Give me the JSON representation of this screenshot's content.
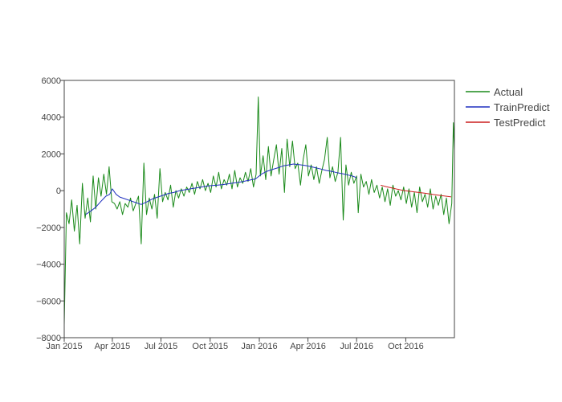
{
  "chart_data": {
    "type": "line",
    "title": "",
    "xlabel": "",
    "ylabel": "",
    "x_range": [
      "2015-01-01",
      "2016-12-31"
    ],
    "ylim": [
      -8000,
      6000
    ],
    "y_ticks": [
      -8000,
      -6000,
      -4000,
      -2000,
      0,
      2000,
      4000,
      6000
    ],
    "y_tick_labels": [
      "−8000",
      "−6000",
      "−4000",
      "−2000",
      "0",
      "2000",
      "4000",
      "6000"
    ],
    "x_ticks": [
      {
        "date": "2015-01-01",
        "label": "Jan 2015"
      },
      {
        "date": "2015-04-01",
        "label": "Apr 2015"
      },
      {
        "date": "2015-07-01",
        "label": "Jul 2015"
      },
      {
        "date": "2015-10-01",
        "label": "Oct 2015"
      },
      {
        "date": "2016-01-01",
        "label": "Jan 2016"
      },
      {
        "date": "2016-04-01",
        "label": "Apr 2016"
      },
      {
        "date": "2016-07-01",
        "label": "Jul 2016"
      },
      {
        "date": "2016-10-01",
        "label": "Oct 2016"
      }
    ],
    "grid": false,
    "legend_position": "right",
    "series": [
      {
        "name": "Actual",
        "color": "#1a8a1a",
        "points": [
          [
            "2015-01-01",
            -7300
          ],
          [
            "2015-01-05",
            -1200
          ],
          [
            "2015-01-10",
            -1800
          ],
          [
            "2015-01-15",
            -500
          ],
          [
            "2015-01-20",
            -2200
          ],
          [
            "2015-01-25",
            -800
          ],
          [
            "2015-01-30",
            -2900
          ],
          [
            "2015-02-04",
            400
          ],
          [
            "2015-02-09",
            -1500
          ],
          [
            "2015-02-14",
            -400
          ],
          [
            "2015-02-19",
            -1700
          ],
          [
            "2015-02-24",
            800
          ],
          [
            "2015-03-01",
            -1000
          ],
          [
            "2015-03-06",
            700
          ],
          [
            "2015-03-11",
            -300
          ],
          [
            "2015-03-16",
            900
          ],
          [
            "2015-03-21",
            -200
          ],
          [
            "2015-03-26",
            1300
          ],
          [
            "2015-03-31",
            -600
          ],
          [
            "2015-04-05",
            -700
          ],
          [
            "2015-04-10",
            -1000
          ],
          [
            "2015-04-15",
            -600
          ],
          [
            "2015-04-20",
            -1300
          ],
          [
            "2015-04-25",
            -700
          ],
          [
            "2015-04-30",
            -900
          ],
          [
            "2015-05-05",
            -400
          ],
          [
            "2015-05-10",
            -1100
          ],
          [
            "2015-05-15",
            -700
          ],
          [
            "2015-05-20",
            -300
          ],
          [
            "2015-05-25",
            -2900
          ],
          [
            "2015-05-30",
            1500
          ],
          [
            "2015-06-04",
            -1300
          ],
          [
            "2015-06-09",
            -400
          ],
          [
            "2015-06-14",
            -1000
          ],
          [
            "2015-06-19",
            -200
          ],
          [
            "2015-06-24",
            -1500
          ],
          [
            "2015-06-29",
            1200
          ],
          [
            "2015-07-04",
            -600
          ],
          [
            "2015-07-09",
            -100
          ],
          [
            "2015-07-14",
            -500
          ],
          [
            "2015-07-19",
            300
          ],
          [
            "2015-07-24",
            -900
          ],
          [
            "2015-07-29",
            0
          ],
          [
            "2015-08-03",
            -400
          ],
          [
            "2015-08-08",
            100
          ],
          [
            "2015-08-13",
            -300
          ],
          [
            "2015-08-18",
            200
          ],
          [
            "2015-08-23",
            -100
          ],
          [
            "2015-08-28",
            400
          ],
          [
            "2015-09-02",
            -200
          ],
          [
            "2015-09-07",
            500
          ],
          [
            "2015-09-12",
            100
          ],
          [
            "2015-09-17",
            600
          ],
          [
            "2015-09-22",
            0
          ],
          [
            "2015-09-27",
            400
          ],
          [
            "2015-10-02",
            -100
          ],
          [
            "2015-10-07",
            800
          ],
          [
            "2015-10-12",
            200
          ],
          [
            "2015-10-17",
            1000
          ],
          [
            "2015-10-22",
            100
          ],
          [
            "2015-10-27",
            600
          ],
          [
            "2015-11-01",
            300
          ],
          [
            "2015-11-06",
            900
          ],
          [
            "2015-11-11",
            100
          ],
          [
            "2015-11-16",
            1100
          ],
          [
            "2015-11-21",
            200
          ],
          [
            "2015-11-26",
            700
          ],
          [
            "2015-12-01",
            400
          ],
          [
            "2015-12-06",
            1000
          ],
          [
            "2015-12-11",
            500
          ],
          [
            "2015-12-16",
            1200
          ],
          [
            "2015-12-21",
            200
          ],
          [
            "2015-12-26",
            900
          ],
          [
            "2015-12-30",
            5100
          ],
          [
            "2016-01-03",
            800
          ],
          [
            "2016-01-08",
            1900
          ],
          [
            "2016-01-13",
            600
          ],
          [
            "2016-01-18",
            2400
          ],
          [
            "2016-01-23",
            800
          ],
          [
            "2016-01-28",
            1700
          ],
          [
            "2016-02-02",
            2500
          ],
          [
            "2016-02-07",
            900
          ],
          [
            "2016-02-12",
            2300
          ],
          [
            "2016-02-17",
            -100
          ],
          [
            "2016-02-22",
            2800
          ],
          [
            "2016-02-27",
            1300
          ],
          [
            "2016-03-03",
            2700
          ],
          [
            "2016-03-08",
            1200
          ],
          [
            "2016-03-13",
            1500
          ],
          [
            "2016-03-18",
            300
          ],
          [
            "2016-03-23",
            1700
          ],
          [
            "2016-03-28",
            2500
          ],
          [
            "2016-04-02",
            800
          ],
          [
            "2016-04-07",
            1400
          ],
          [
            "2016-04-12",
            600
          ],
          [
            "2016-04-17",
            1300
          ],
          [
            "2016-04-22",
            400
          ],
          [
            "2016-04-27",
            1100
          ],
          [
            "2016-05-02",
            1700
          ],
          [
            "2016-05-07",
            2900
          ],
          [
            "2016-05-12",
            700
          ],
          [
            "2016-05-17",
            1300
          ],
          [
            "2016-05-22",
            500
          ],
          [
            "2016-05-27",
            1000
          ],
          [
            "2016-06-01",
            2900
          ],
          [
            "2016-06-06",
            -1600
          ],
          [
            "2016-06-11",
            1400
          ],
          [
            "2016-06-16",
            300
          ],
          [
            "2016-06-21",
            1000
          ],
          [
            "2016-06-26",
            400
          ],
          [
            "2016-07-01",
            800
          ],
          [
            "2016-07-04",
            -1200
          ],
          [
            "2016-07-09",
            900
          ],
          [
            "2016-07-14",
            200
          ],
          [
            "2016-07-19",
            500
          ],
          [
            "2016-07-24",
            -200
          ],
          [
            "2016-07-29",
            600
          ],
          [
            "2016-08-03",
            -100
          ],
          [
            "2016-08-08",
            300
          ],
          [
            "2016-08-13",
            -400
          ],
          [
            "2016-08-18",
            200
          ],
          [
            "2016-08-23",
            -600
          ],
          [
            "2016-08-28",
            100
          ],
          [
            "2016-09-02",
            -800
          ],
          [
            "2016-09-07",
            300
          ],
          [
            "2016-09-12",
            -300
          ],
          [
            "2016-09-17",
            0
          ],
          [
            "2016-09-22",
            -500
          ],
          [
            "2016-09-27",
            200
          ],
          [
            "2016-10-02",
            -700
          ],
          [
            "2016-10-07",
            100
          ],
          [
            "2016-10-12",
            -900
          ],
          [
            "2016-10-17",
            -100
          ],
          [
            "2016-10-22",
            -1200
          ],
          [
            "2016-10-27",
            200
          ],
          [
            "2016-11-01",
            -600
          ],
          [
            "2016-11-06",
            -200
          ],
          [
            "2016-11-11",
            -900
          ],
          [
            "2016-11-16",
            100
          ],
          [
            "2016-11-21",
            -1000
          ],
          [
            "2016-11-26",
            -300
          ],
          [
            "2016-12-01",
            -800
          ],
          [
            "2016-12-06",
            -200
          ],
          [
            "2016-12-11",
            -1300
          ],
          [
            "2016-12-16",
            -400
          ],
          [
            "2016-12-21",
            -1800
          ],
          [
            "2016-12-26",
            -700
          ],
          [
            "2016-12-29",
            3700
          ],
          [
            "2016-12-31",
            2200
          ]
        ]
      },
      {
        "name": "TrainPredict",
        "color": "#1f2fbf",
        "points": [
          [
            "2015-02-10",
            -1300
          ],
          [
            "2015-02-20",
            -1100
          ],
          [
            "2015-03-01",
            -900
          ],
          [
            "2015-03-10",
            -600
          ],
          [
            "2015-03-20",
            -300
          ],
          [
            "2015-03-27",
            -200
          ],
          [
            "2015-04-01",
            100
          ],
          [
            "2015-04-08",
            -200
          ],
          [
            "2015-04-15",
            -350
          ],
          [
            "2015-04-25",
            -450
          ],
          [
            "2015-05-05",
            -550
          ],
          [
            "2015-05-15",
            -650
          ],
          [
            "2015-05-25",
            -750
          ],
          [
            "2015-06-05",
            -600
          ],
          [
            "2015-06-15",
            -450
          ],
          [
            "2015-06-25",
            -350
          ],
          [
            "2015-07-05",
            -250
          ],
          [
            "2015-07-15",
            -150
          ],
          [
            "2015-07-25",
            -100
          ],
          [
            "2015-08-05",
            0
          ],
          [
            "2015-08-15",
            50
          ],
          [
            "2015-08-25",
            100
          ],
          [
            "2015-09-05",
            150
          ],
          [
            "2015-09-15",
            200
          ],
          [
            "2015-09-25",
            250
          ],
          [
            "2015-10-05",
            280
          ],
          [
            "2015-10-15",
            300
          ],
          [
            "2015-10-25",
            330
          ],
          [
            "2015-11-05",
            380
          ],
          [
            "2015-11-15",
            420
          ],
          [
            "2015-11-25",
            460
          ],
          [
            "2015-12-05",
            520
          ],
          [
            "2015-12-15",
            580
          ],
          [
            "2015-12-25",
            640
          ],
          [
            "2016-01-05",
            900
          ],
          [
            "2016-01-15",
            1050
          ],
          [
            "2016-01-25",
            1150
          ],
          [
            "2016-02-05",
            1250
          ],
          [
            "2016-02-15",
            1350
          ],
          [
            "2016-02-25",
            1400
          ],
          [
            "2016-03-05",
            1450
          ],
          [
            "2016-03-15",
            1420
          ],
          [
            "2016-03-25",
            1380
          ],
          [
            "2016-04-05",
            1320
          ],
          [
            "2016-04-15",
            1250
          ],
          [
            "2016-04-25",
            1180
          ],
          [
            "2016-05-05",
            1100
          ],
          [
            "2016-05-15",
            1050
          ],
          [
            "2016-05-25",
            980
          ],
          [
            "2016-06-05",
            920
          ],
          [
            "2016-06-15",
            850
          ],
          [
            "2016-06-25",
            780
          ],
          [
            "2016-07-01",
            700
          ]
        ]
      },
      {
        "name": "TestPredict",
        "color": "#cc1f1f",
        "points": [
          [
            "2016-08-15",
            300
          ],
          [
            "2016-08-25",
            220
          ],
          [
            "2016-09-05",
            150
          ],
          [
            "2016-09-15",
            80
          ],
          [
            "2016-09-25",
            20
          ],
          [
            "2016-10-05",
            -20
          ],
          [
            "2016-10-15",
            -60
          ],
          [
            "2016-10-25",
            -100
          ],
          [
            "2016-11-05",
            -140
          ],
          [
            "2016-11-15",
            -180
          ],
          [
            "2016-11-25",
            -220
          ],
          [
            "2016-12-05",
            -260
          ],
          [
            "2016-12-15",
            -300
          ],
          [
            "2016-12-25",
            -340
          ]
        ]
      }
    ]
  }
}
